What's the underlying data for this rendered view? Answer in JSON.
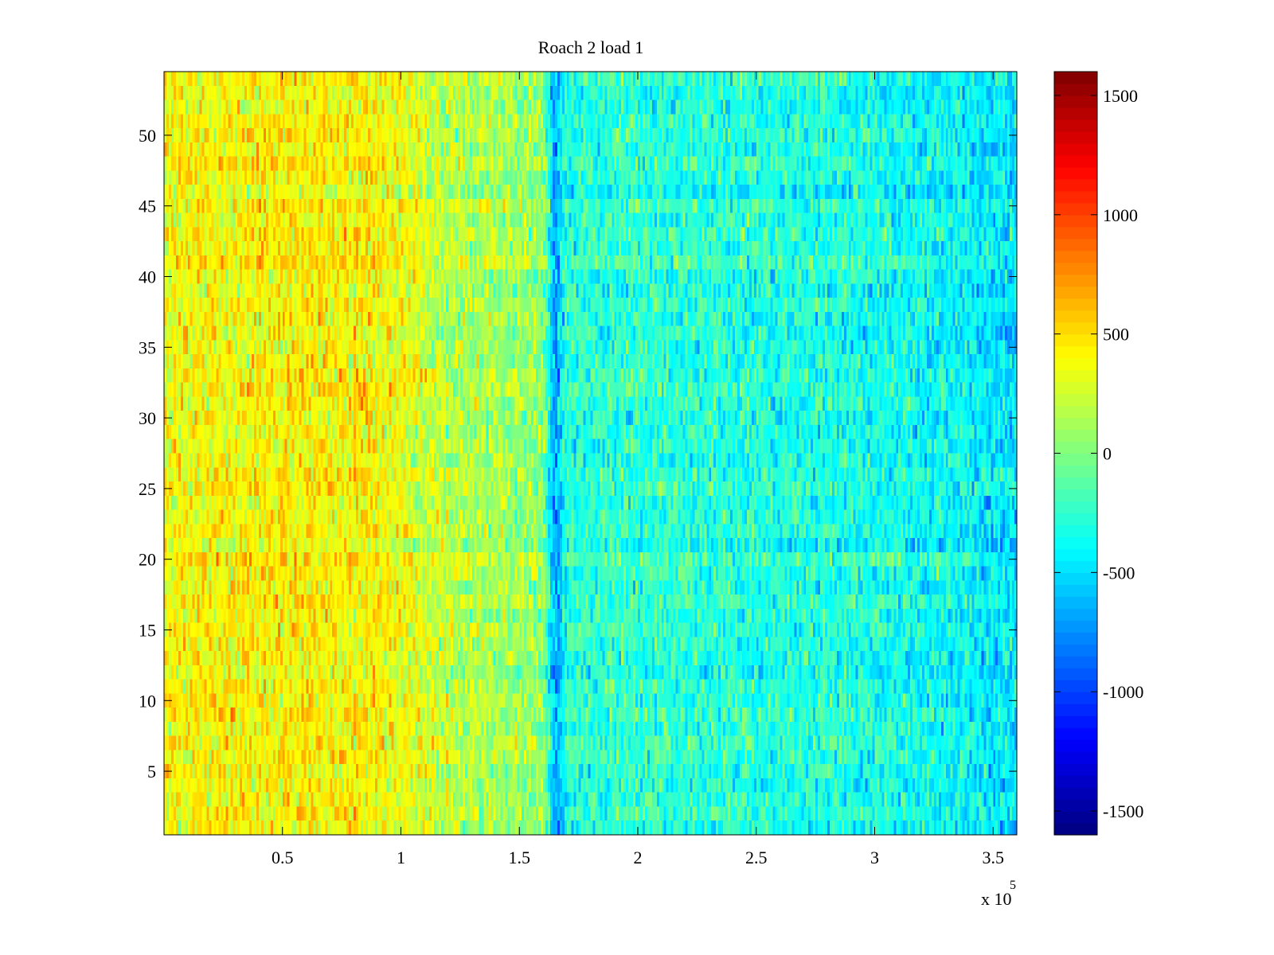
{
  "chart_data": {
    "type": "heatmap",
    "title": "Roach 2 load 1",
    "xlabel": "",
    "ylabel": "",
    "x_range": [
      0,
      3.6
    ],
    "x_exponent_label": "x 10",
    "x_exponent": "5",
    "x_ticks": [
      0.5,
      1,
      1.5,
      2,
      2.5,
      3,
      3.5
    ],
    "x_tick_labels": [
      "0.5",
      "1",
      "1.5",
      "2",
      "2.5",
      "3",
      "3.5"
    ],
    "y_range": [
      0.5,
      54.5
    ],
    "y_ticks": [
      5,
      10,
      15,
      20,
      25,
      30,
      35,
      40,
      45,
      50
    ],
    "y_tick_labels": [
      "5",
      "10",
      "15",
      "20",
      "25",
      "30",
      "35",
      "40",
      "45",
      "50"
    ],
    "rows": 54,
    "columns": 360,
    "colormap": "jet",
    "colorbar": {
      "range": [
        -1600,
        1600
      ],
      "ticks": [
        -1500,
        -1000,
        -500,
        0,
        500,
        1000,
        1500
      ],
      "tick_labels": [
        "-1500",
        "-1000",
        "-500",
        "0",
        "500",
        "1000",
        "1500"
      ]
    },
    "trend": {
      "x": [
        0,
        0.5,
        0.9,
        1.2,
        1.6,
        1.65,
        1.7,
        2.0,
        2.5,
        3.0,
        3.4,
        3.6
      ],
      "mean_value": [
        380,
        420,
        420,
        180,
        50,
        -700,
        -280,
        -250,
        -300,
        -320,
        -420,
        -500
      ]
    },
    "noise_amplitude": 230
  }
}
